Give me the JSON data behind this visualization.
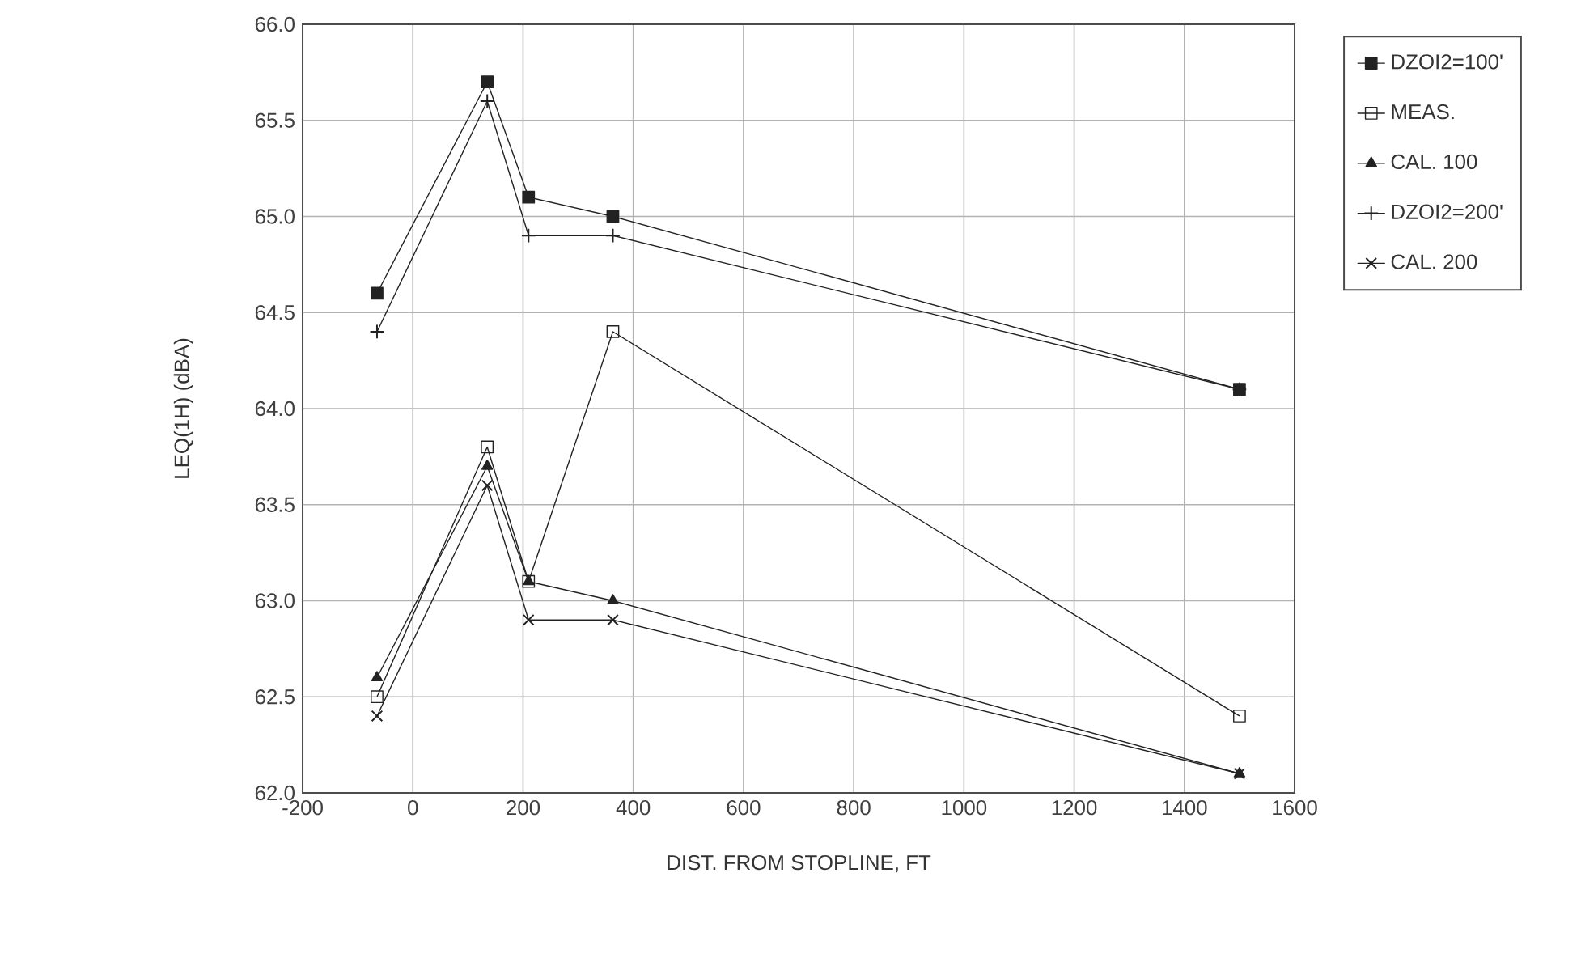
{
  "chart_data": {
    "type": "line",
    "xlabel": "DIST. FROM STOPLINE, FT",
    "ylabel": "LEQ(1H) (dBA)",
    "x": [
      -65,
      135,
      210,
      363,
      1500
    ],
    "series": [
      {
        "name": "DZOI2=100'",
        "color": "#222222",
        "marker": "square",
        "values": [
          64.6,
          65.7,
          65.1,
          65.0,
          64.1
        ]
      },
      {
        "name": "MEAS.",
        "color": "#222222",
        "marker": "square_open",
        "values": [
          62.5,
          63.8,
          63.1,
          64.4,
          62.4
        ]
      },
      {
        "name": "CAL. 100",
        "color": "#222222",
        "marker": "triangle",
        "values": [
          62.6,
          63.7,
          63.1,
          63.0,
          62.1
        ]
      },
      {
        "name": "DZOI2=200'",
        "color": "#222222",
        "marker": "plus",
        "values": [
          64.4,
          65.6,
          64.9,
          64.9,
          64.1
        ]
      },
      {
        "name": "CAL. 200",
        "color": "#222222",
        "marker": "cross",
        "values": [
          62.4,
          63.6,
          62.9,
          62.9,
          62.1
        ]
      }
    ],
    "xlim": [
      -200,
      1600
    ],
    "xticks": [
      -200,
      0,
      200,
      400,
      600,
      800,
      1000,
      1200,
      1400,
      1600
    ],
    "ylim": [
      62.0,
      66.0
    ],
    "yticks": [
      {
        "value": 62.0,
        "label": "62.0"
      },
      {
        "value": 62.5,
        "label": "62.5"
      },
      {
        "value": 63.0,
        "label": "63.0"
      },
      {
        "value": 63.5,
        "label": "63.5"
      },
      {
        "value": 64.0,
        "label": "64.0"
      },
      {
        "value": 64.5,
        "label": "64.5"
      },
      {
        "value": 65.0,
        "label": "65.0"
      },
      {
        "value": 65.5,
        "label": "65.5"
      },
      {
        "value": 66.0,
        "label": "66.0"
      }
    ],
    "grid": true,
    "legend": "right",
    "line_style": "solid"
  }
}
